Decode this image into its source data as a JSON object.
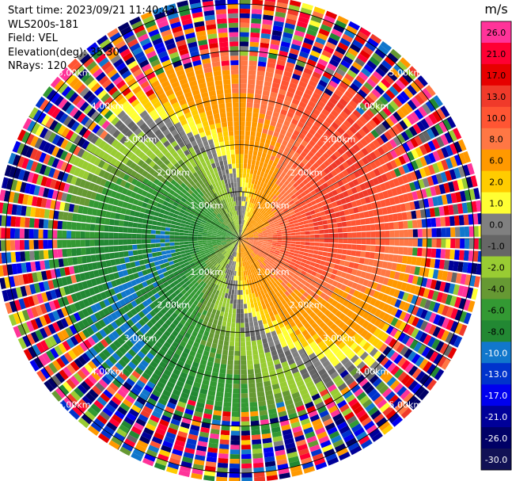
{
  "header": {
    "start_time": "Start time: 2023/09/21 11:40:43",
    "instrument": "WLS200s-181",
    "field": "Field: VEL",
    "elevation": "Elevation(deg): 35.30",
    "nrays": "NRays: 120"
  },
  "chart_data": {
    "type": "heatmap",
    "projection": "polar-ppi",
    "field": "VEL",
    "units": "m/s",
    "nrays": 120,
    "elevation_deg": 35.3,
    "range_rings_km": [
      1.0,
      2.0,
      3.0,
      4.0,
      5.0
    ],
    "range_ring_labels": [
      "1.00km",
      "2.00km",
      "3.00km",
      "4.00km",
      "5.00km"
    ],
    "max_range_km": 5.2,
    "spoke_angles_deg": [
      0,
      30,
      60,
      90,
      120,
      150,
      180,
      210,
      240,
      270,
      300,
      330
    ],
    "pattern": {
      "description_values": "approaching flow from northwest, receding to east/southeast",
      "max_positive_ms": 10.0,
      "max_negative_ms": -10.0,
      "noise_onset_km": 4.1
    },
    "colorbar": {
      "label": "m/s",
      "tick_labels": [
        "26.0",
        "21.0",
        "17.0",
        "13.0",
        "10.0",
        "8.0",
        "6.0",
        "2.0",
        "1.0",
        "0.0",
        "-1.0",
        "-2.0",
        "-4.0",
        "-6.0",
        "-8.0",
        "-10.0",
        "-13.0",
        "-17.0",
        "-21.0",
        "-26.0",
        "-30.0"
      ],
      "colors_top_to_bottom": [
        "#ff3399",
        "#ff0033",
        "#e60000",
        "#f03a2a",
        "#ff5533",
        "#ff7744",
        "#ff9900",
        "#ffcc00",
        "#ffff33",
        "#808080",
        "#666666",
        "#99cc33",
        "#669933",
        "#339933",
        "#228833",
        "#1177cc",
        "#0033cc",
        "#0000ee",
        "#000099",
        "#000066",
        "#111155"
      ]
    }
  }
}
